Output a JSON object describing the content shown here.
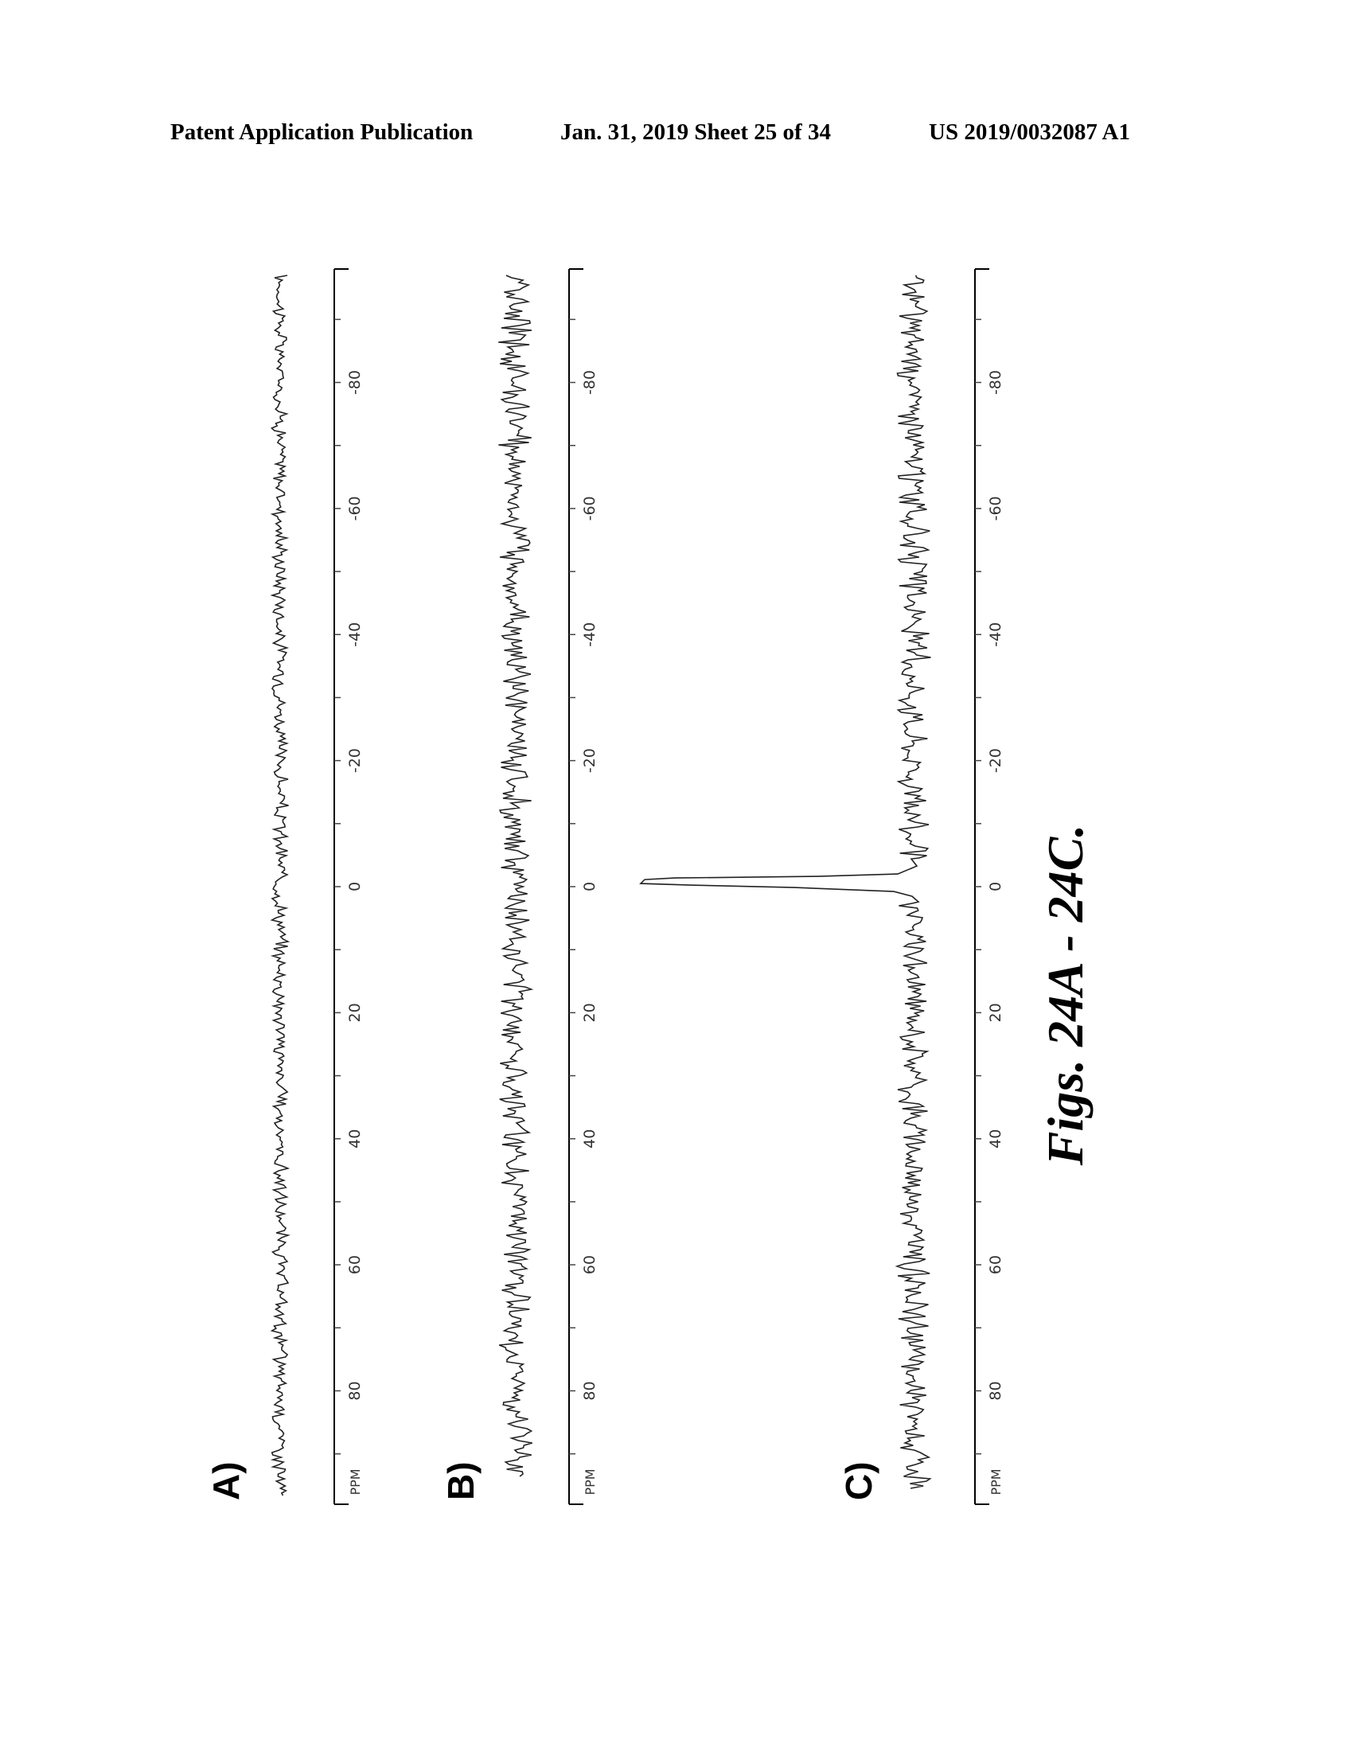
{
  "header": {
    "left": "Patent Application Publication",
    "middle": "Jan. 31, 2019  Sheet 25 of 34",
    "right": "US 2019/0032087 A1"
  },
  "caption": "Figs. 24A - 24C.",
  "chart_data": [
    {
      "type": "line",
      "panel_label": "A)",
      "axis_unit": "PPM",
      "x_ticks": [
        "80",
        "60",
        "40",
        "20",
        "0",
        "-20",
        "-40",
        "-60",
        "-80"
      ],
      "xlim": [
        98,
        -98
      ],
      "series": [
        {
          "x": [],
          "y": []
        }
      ],
      "peak": null
    },
    {
      "type": "line",
      "panel_label": "B)",
      "axis_unit": "PPM",
      "x_ticks": [
        "80",
        "60",
        "40",
        "20",
        "0",
        "-20",
        "-40",
        "-60",
        "-80"
      ],
      "xlim": [
        98,
        -98
      ],
      "series": [
        {
          "x": [],
          "y": []
        }
      ],
      "peak": null
    },
    {
      "type": "line",
      "panel_label": "C)",
      "axis_unit": "PPM",
      "x_ticks": [
        "80",
        "60",
        "40",
        "20",
        "0",
        "-20",
        "-40",
        "-60",
        "-80"
      ],
      "xlim": [
        98,
        -98
      ],
      "series": [
        {
          "x": [],
          "y": []
        }
      ],
      "peak": {
        "x": -1,
        "y": 1.0
      }
    }
  ]
}
